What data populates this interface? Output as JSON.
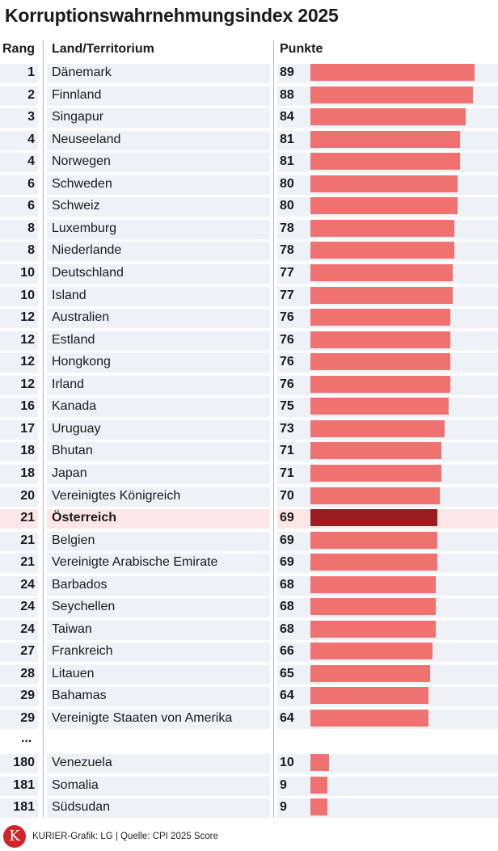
{
  "title": "Korruptionswahrnehmungsindex 2025",
  "headers": {
    "rank": "Rang",
    "country": "Land/Territorium",
    "score": "Punkte"
  },
  "ellipsis": "...",
  "footer": {
    "logo_letter": "K",
    "source": "KURIER-Grafik: LG | Quelle: CPI 2025 Score"
  },
  "colors": {
    "bar": "#ef7271",
    "highlight_bar": "#9b1b1e",
    "row_bg": "#eef1f6",
    "highlight_row_bg": "#fde6e6",
    "logo": "#d3242a"
  },
  "chart_data": {
    "type": "bar",
    "orientation": "horizontal",
    "title": "Korruptionswahrnehmungsindex 2025",
    "xlim": [
      0,
      100
    ],
    "highlight": "Österreich",
    "rows": [
      {
        "rank": "1",
        "country": "Dänemark",
        "score": 89
      },
      {
        "rank": "2",
        "country": "Finnland",
        "score": 88
      },
      {
        "rank": "3",
        "country": "Singapur",
        "score": 84
      },
      {
        "rank": "4",
        "country": "Neuseeland",
        "score": 81
      },
      {
        "rank": "4",
        "country": "Norwegen",
        "score": 81
      },
      {
        "rank": "6",
        "country": "Schweden",
        "score": 80
      },
      {
        "rank": "6",
        "country": "Schweiz",
        "score": 80
      },
      {
        "rank": "8",
        "country": "Luxemburg",
        "score": 78
      },
      {
        "rank": "8",
        "country": "Niederlande",
        "score": 78
      },
      {
        "rank": "10",
        "country": "Deutschland",
        "score": 77
      },
      {
        "rank": "10",
        "country": "Island",
        "score": 77
      },
      {
        "rank": "12",
        "country": "Australien",
        "score": 76
      },
      {
        "rank": "12",
        "country": "Estland",
        "score": 76
      },
      {
        "rank": "12",
        "country": "Hongkong",
        "score": 76
      },
      {
        "rank": "12",
        "country": "Irland",
        "score": 76
      },
      {
        "rank": "16",
        "country": "Kanada",
        "score": 75
      },
      {
        "rank": "17",
        "country": "Uruguay",
        "score": 73
      },
      {
        "rank": "18",
        "country": "Bhutan",
        "score": 71
      },
      {
        "rank": "18",
        "country": "Japan",
        "score": 71
      },
      {
        "rank": "20",
        "country": "Vereinigtes Königreich",
        "score": 70
      },
      {
        "rank": "21",
        "country": "Österreich",
        "score": 69,
        "highlight": true
      },
      {
        "rank": "21",
        "country": "Belgien",
        "score": 69
      },
      {
        "rank": "21",
        "country": "Vereinigte Arabische Emirate",
        "score": 69
      },
      {
        "rank": "24",
        "country": "Barbados",
        "score": 68
      },
      {
        "rank": "24",
        "country": "Seychellen",
        "score": 68
      },
      {
        "rank": "24",
        "country": "Taiwan",
        "score": 68
      },
      {
        "rank": "27",
        "country": "Frankreich",
        "score": 66
      },
      {
        "rank": "28",
        "country": "Litauen",
        "score": 65
      },
      {
        "rank": "29",
        "country": "Bahamas",
        "score": 64
      },
      {
        "rank": "29",
        "country": "Vereinigte Staaten von Amerika",
        "score": 64
      },
      {
        "rank": "180",
        "country": "Venezuela",
        "score": 10
      },
      {
        "rank": "181",
        "country": "Somalia",
        "score": 9
      },
      {
        "rank": "181",
        "country": "Südsudan",
        "score": 9
      }
    ]
  }
}
